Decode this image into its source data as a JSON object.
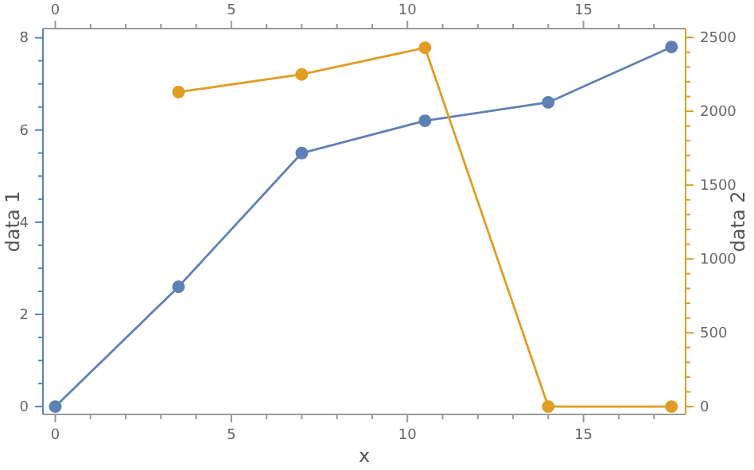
{
  "chart_data": {
    "type": "line",
    "xlabel": "x",
    "ylabel": "data 1",
    "y2label": "data 2",
    "marker": "circle",
    "line_style": "solid",
    "grid": false,
    "xlim": [
      -0.35,
      17.9
    ],
    "xticks": [
      0,
      {
        "value": 1,
        "label": null
      },
      {
        "value": 2,
        "label": null
      },
      {
        "value": 3,
        "label": null
      },
      {
        "value": 4,
        "label": null
      },
      5,
      {
        "value": 6,
        "label": null
      },
      {
        "value": 7,
        "label": null
      },
      {
        "value": 8,
        "label": null
      },
      {
        "value": 9,
        "label": null
      },
      10,
      {
        "value": 11,
        "label": null
      },
      {
        "value": 12,
        "label": null
      },
      {
        "value": 13,
        "label": null
      },
      {
        "value": 14,
        "label": null
      },
      15,
      {
        "value": 16,
        "label": null
      },
      {
        "value": 17,
        "label": null
      }
    ],
    "x2lim": [
      -0.35,
      17.9
    ],
    "x2ticks": [
      0,
      {
        "value": 1,
        "label": null
      },
      {
        "value": 2,
        "label": null
      },
      {
        "value": 3,
        "label": null
      },
      {
        "value": 4,
        "label": null
      },
      5,
      {
        "value": 6,
        "label": null
      },
      {
        "value": 7,
        "label": null
      },
      {
        "value": 8,
        "label": null
      },
      {
        "value": 9,
        "label": null
      },
      10,
      {
        "value": 11,
        "label": null
      },
      {
        "value": 12,
        "label": null
      },
      {
        "value": 13,
        "label": null
      },
      {
        "value": 14,
        "label": null
      },
      15,
      {
        "value": 16,
        "label": null
      },
      {
        "value": 17,
        "label": null
      }
    ],
    "ylim": [
      -0.17,
      8.2
    ],
    "yticks": [
      0,
      {
        "value": 0.5,
        "label": null
      },
      {
        "value": 1,
        "label": null
      },
      {
        "value": 1.5,
        "label": null
      },
      2,
      {
        "value": 2.5,
        "label": null
      },
      {
        "value": 3,
        "label": null
      },
      {
        "value": 3.5,
        "label": null
      },
      4,
      {
        "value": 4.5,
        "label": null
      },
      {
        "value": 5,
        "label": null
      },
      {
        "value": 5.5,
        "label": null
      },
      6,
      {
        "value": 6.5,
        "label": null
      },
      {
        "value": 7,
        "label": null
      },
      {
        "value": 7.5,
        "label": null
      },
      8
    ],
    "y2lim": [
      -53,
      2560
    ],
    "y2ticks": [
      0,
      {
        "value": 100,
        "label": null
      },
      {
        "value": 200,
        "label": null
      },
      {
        "value": 300,
        "label": null
      },
      {
        "value": 400,
        "label": null
      },
      500,
      {
        "value": 600,
        "label": null
      },
      {
        "value": 700,
        "label": null
      },
      {
        "value": 800,
        "label": null
      },
      {
        "value": 900,
        "label": null
      },
      1000,
      {
        "value": 1100,
        "label": null
      },
      {
        "value": 1200,
        "label": null
      },
      {
        "value": 1300,
        "label": null
      },
      {
        "value": 1400,
        "label": null
      },
      1500,
      {
        "value": 1600,
        "label": null
      },
      {
        "value": 1700,
        "label": null
      },
      {
        "value": 1800,
        "label": null
      },
      {
        "value": 1900,
        "label": null
      },
      2000,
      {
        "value": 2100,
        "label": null
      },
      {
        "value": 2200,
        "label": null
      },
      {
        "value": 2300,
        "label": null
      },
      {
        "value": 2400,
        "label": null
      },
      2500
    ],
    "series": [
      {
        "color": "#5e81b5",
        "x": [
          0,
          3.5,
          7,
          10.5,
          14,
          17.5
        ],
        "values": [
          0,
          2.6,
          5.5,
          6.2,
          6.6,
          7.8
        ]
      },
      {
        "color": "#e19c24",
        "axis": "y2",
        "x": [
          3.5,
          7,
          10.5,
          14,
          17.5
        ],
        "values": [
          2130,
          2250,
          2430,
          0,
          0
        ]
      }
    ]
  }
}
